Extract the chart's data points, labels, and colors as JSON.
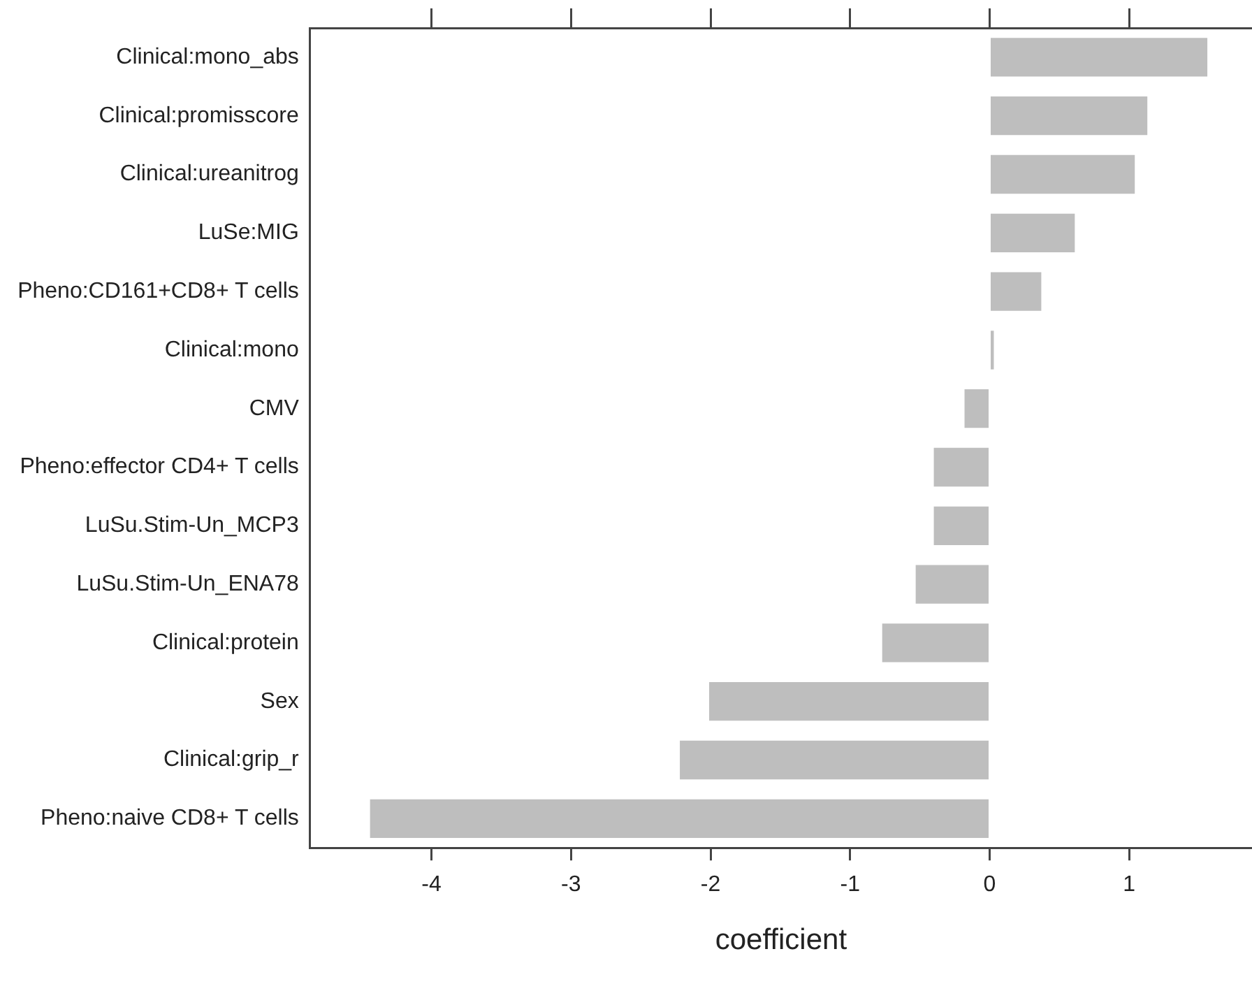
{
  "chart_data": {
    "type": "bar",
    "orientation": "horizontal",
    "xlabel": "coefficient",
    "categories": [
      "Clinical:mono_abs",
      "Clinical:promisscore",
      "Clinical:ureanitrog",
      "LuSe:MIG",
      "Pheno:CD161+CD8+ T cells",
      "Clinical:mono",
      "CMV",
      "Pheno:effector CD4+ T cells",
      "LuSu.Stim-Un_MCP3",
      "LuSu.Stim-Un_ENA78",
      "Clinical:protein",
      "Sex",
      "Clinical:grip_r",
      "Pheno:naive CD8+ T cells"
    ],
    "values": [
      1.56,
      1.13,
      1.04,
      0.61,
      0.37,
      0.03,
      -0.18,
      -0.4,
      -0.4,
      -0.53,
      -0.77,
      -2.01,
      -2.22,
      -4.44
    ],
    "color": "#bebebe",
    "xlim": [
      -4.87,
      1.88
    ],
    "xticks": [
      -4,
      -3,
      -2,
      -1,
      0,
      1
    ],
    "grid": false,
    "legend": false
  }
}
